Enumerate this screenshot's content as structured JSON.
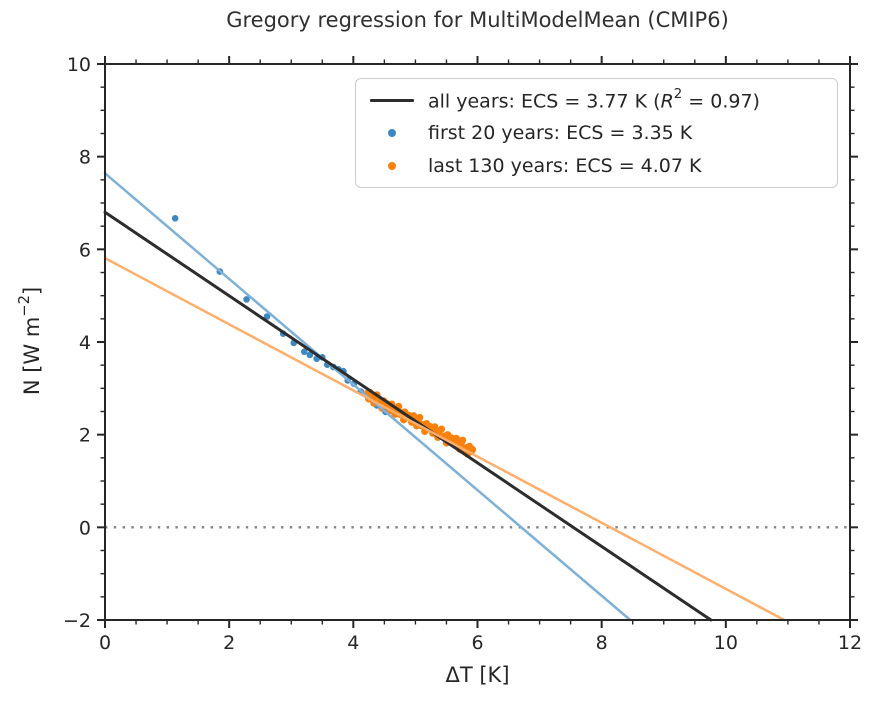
{
  "figure": {
    "title": "Gregory regression for MultiModelMean (CMIP6)",
    "background": "#ffffff"
  },
  "axes": {
    "xlabel": "ΔT [K]",
    "ylabel_pre": "N [W m",
    "ylabel_sup": "−2",
    "ylabel_post": "]",
    "ylabel_full": "N [W m⁻²]"
  },
  "legend": {
    "position": "upper right",
    "item1": {
      "pre": "all years: ECS = 3.77 K (",
      "r": "R",
      "sup": "2",
      "post": " = 0.97)"
    },
    "item2": "first 20 years: ECS = 3.35 K",
    "item3": "last 130 years: ECS = 4.07 K"
  },
  "colors": {
    "black_line": "#2d2d2d",
    "blue_scatter": "#3a87c1",
    "blue_line": "#7eb1d7",
    "orange_scatter": "#f8810e",
    "orange_line": "#fdae6b",
    "zero_line": "#808080",
    "spine": "#262626",
    "text": "#262626"
  },
  "chart_data": {
    "type": "scatter",
    "title": "Gregory regression for MultiModelMean (CMIP6)",
    "xlabel": "ΔT [K]",
    "ylabel": "N [W m⁻²]",
    "xlim": [
      0,
      12
    ],
    "ylim": [
      -2,
      10
    ],
    "xticks": [
      0,
      2,
      4,
      6,
      8,
      10,
      12
    ],
    "yticks": [
      -2,
      0,
      2,
      4,
      6,
      8,
      10
    ],
    "minor_tick_step": 0.5,
    "grid": false,
    "legend_position": "upper right",
    "zero_line": {
      "y": 0,
      "style": "dotted",
      "color": "#808080"
    },
    "stats": {
      "ecs_all_years_K": 3.77,
      "r2_all_years": 0.97,
      "ecs_first_20_years_K": 3.35,
      "ecs_last_130_years_K": 4.07
    },
    "series": [
      {
        "name": "first 20 years: ECS = 3.35 K",
        "type": "scatter",
        "color": "#3a87c1",
        "points": [
          [
            1.13,
            6.67
          ],
          [
            1.85,
            5.52
          ],
          [
            2.28,
            4.92
          ],
          [
            2.61,
            4.55
          ],
          [
            2.87,
            4.18
          ],
          [
            3.04,
            3.98
          ],
          [
            3.21,
            3.79
          ],
          [
            3.3,
            3.72
          ],
          [
            3.41,
            3.64
          ],
          [
            3.5,
            3.67
          ],
          [
            3.58,
            3.51
          ],
          [
            3.68,
            3.46
          ],
          [
            3.76,
            3.41
          ],
          [
            3.84,
            3.37
          ],
          [
            3.91,
            3.17
          ],
          [
            4.01,
            3.1
          ],
          [
            4.12,
            2.93
          ],
          [
            4.24,
            2.78
          ],
          [
            4.38,
            2.63
          ],
          [
            4.52,
            2.49
          ]
        ]
      },
      {
        "name": "last 130 years: ECS = 4.07 K",
        "type": "scatter",
        "color": "#f8810e",
        "points": [
          [
            4.22,
            2.89
          ],
          [
            4.25,
            2.77
          ],
          [
            4.27,
            2.91
          ],
          [
            4.3,
            2.79
          ],
          [
            4.33,
            2.68
          ],
          [
            4.35,
            2.82
          ],
          [
            4.38,
            2.86
          ],
          [
            4.41,
            2.68
          ],
          [
            4.43,
            2.72
          ],
          [
            4.46,
            2.57
          ],
          [
            4.49,
            2.73
          ],
          [
            4.51,
            2.63
          ],
          [
            4.54,
            2.67
          ],
          [
            4.57,
            2.64
          ],
          [
            4.59,
            2.52
          ],
          [
            4.62,
            2.66
          ],
          [
            4.65,
            2.54
          ],
          [
            4.67,
            2.44
          ],
          [
            4.7,
            2.57
          ],
          [
            4.73,
            2.61
          ],
          [
            4.75,
            2.44
          ],
          [
            4.78,
            2.47
          ],
          [
            4.81,
            2.32
          ],
          [
            4.83,
            2.49
          ],
          [
            4.86,
            2.38
          ],
          [
            4.89,
            2.42
          ],
          [
            4.91,
            2.39
          ],
          [
            4.94,
            2.27
          ],
          [
            4.97,
            2.41
          ],
          [
            4.99,
            2.3
          ],
          [
            5.02,
            2.19
          ],
          [
            5.05,
            2.32
          ],
          [
            5.07,
            2.37
          ],
          [
            5.1,
            2.19
          ],
          [
            5.13,
            2.22
          ],
          [
            5.15,
            2.07
          ],
          [
            5.18,
            2.24
          ],
          [
            5.21,
            2.13
          ],
          [
            5.23,
            2.18
          ],
          [
            5.26,
            2.14
          ],
          [
            5.28,
            2.03
          ],
          [
            5.31,
            2.17
          ],
          [
            5.34,
            2.05
          ],
          [
            5.36,
            1.94
          ],
          [
            5.39,
            2.08
          ],
          [
            5.42,
            2.12
          ],
          [
            5.44,
            1.95
          ],
          [
            5.47,
            1.97
          ],
          [
            5.5,
            1.82
          ],
          [
            5.52,
            2.0
          ],
          [
            5.55,
            1.89
          ],
          [
            5.58,
            1.93
          ],
          [
            5.6,
            1.9
          ],
          [
            5.63,
            1.78
          ],
          [
            5.66,
            1.92
          ],
          [
            5.68,
            1.8
          ],
          [
            5.71,
            1.69
          ],
          [
            5.74,
            1.83
          ],
          [
            5.76,
            1.88
          ],
          [
            5.79,
            1.7
          ],
          [
            5.82,
            1.72
          ],
          [
            5.84,
            1.58
          ],
          [
            5.87,
            1.75
          ],
          [
            5.9,
            1.64
          ],
          [
            5.92,
            1.68
          ]
        ]
      },
      {
        "name": "first 20 years fit",
        "type": "line",
        "color": "#7eb1d7",
        "points": [
          [
            0,
            7.64
          ],
          [
            8.46,
            -2
          ]
        ]
      },
      {
        "name": "all years: ECS = 3.77 K (R² = 0.97)",
        "type": "line",
        "color": "#2d2d2d",
        "points": [
          [
            0,
            6.8
          ],
          [
            9.76,
            -2
          ]
        ]
      },
      {
        "name": "last 130 years fit",
        "type": "line",
        "color": "#fdae6b",
        "points": [
          [
            0,
            5.81
          ],
          [
            10.94,
            -2
          ]
        ]
      }
    ]
  }
}
